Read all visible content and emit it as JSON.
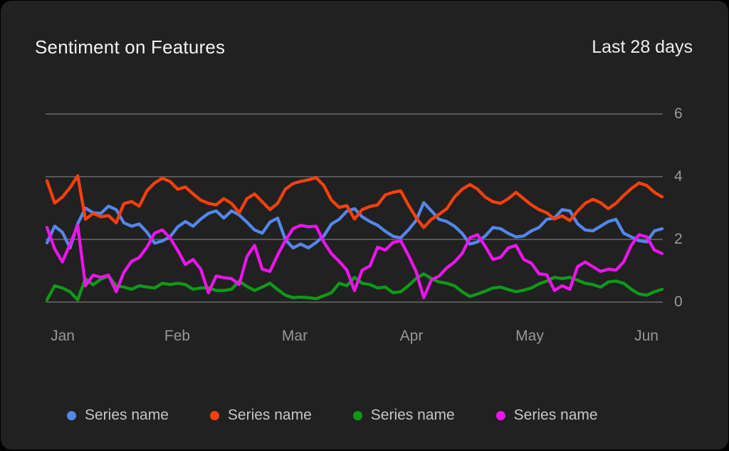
{
  "card": {
    "title": "Sentiment on Features",
    "period": "Last 28 days"
  },
  "chart_data": {
    "type": "line",
    "title": "Sentiment on Features",
    "subtitle": "Last 28 days",
    "grid": true,
    "legend_position": "bottom",
    "ylim": [
      0,
      6
    ],
    "y_ticks": [
      6,
      4,
      2,
      0
    ],
    "y_tick_labels": [
      "6",
      "4",
      "2",
      "0"
    ],
    "x_tick_labels": [
      "Jan",
      "Feb",
      "Mar",
      "Apr",
      "May",
      "Jun"
    ],
    "series": [
      {
        "name": "Series name",
        "color": "#5486ec",
        "values": [
          1.89,
          2.42,
          2.23,
          1.73,
          2.5,
          3.0,
          2.85,
          2.83,
          3.06,
          2.95,
          2.53,
          2.42,
          2.49,
          2.23,
          1.88,
          1.95,
          2.08,
          2.4,
          2.57,
          2.42,
          2.65,
          2.83,
          2.91,
          2.68,
          2.91,
          2.78,
          2.55,
          2.3,
          2.2,
          2.55,
          2.68,
          2.0,
          1.73,
          1.85,
          1.73,
          1.9,
          2.11,
          2.49,
          2.64,
          2.9,
          2.98,
          2.72,
          2.57,
          2.45,
          2.26,
          2.1,
          2.05,
          2.3,
          2.6,
          3.17,
          2.91,
          2.64,
          2.57,
          2.42,
          2.19,
          1.85,
          1.92,
          2.11,
          2.38,
          2.34,
          2.19,
          2.08,
          2.11,
          2.27,
          2.38,
          2.64,
          2.68,
          2.95,
          2.91,
          2.5,
          2.3,
          2.27,
          2.42,
          2.57,
          2.64,
          2.2,
          2.08,
          1.96,
          1.92,
          2.27,
          2.34
        ]
      },
      {
        "name": "Series name",
        "color": "#fb400c",
        "values": [
          3.87,
          3.16,
          3.35,
          3.65,
          4.03,
          2.64,
          2.83,
          2.72,
          2.76,
          2.53,
          3.14,
          3.21,
          3.06,
          3.55,
          3.8,
          3.95,
          3.85,
          3.6,
          3.67,
          3.45,
          3.25,
          3.15,
          3.1,
          3.3,
          3.15,
          2.85,
          3.3,
          3.45,
          3.2,
          2.95,
          3.15,
          3.6,
          3.78,
          3.85,
          3.9,
          3.97,
          3.72,
          3.25,
          3.02,
          3.08,
          2.65,
          2.95,
          3.05,
          3.1,
          3.42,
          3.5,
          3.55,
          3.1,
          2.7,
          2.38,
          2.64,
          2.8,
          2.98,
          3.35,
          3.6,
          3.75,
          3.6,
          3.35,
          3.2,
          3.15,
          3.3,
          3.5,
          3.3,
          3.1,
          2.95,
          2.85,
          2.65,
          2.75,
          2.6,
          2.9,
          3.15,
          3.28,
          3.17,
          2.98,
          3.15,
          3.4,
          3.62,
          3.8,
          3.72,
          3.5,
          3.36
        ]
      },
      {
        "name": "Series name",
        "color": "#0e9a18",
        "values": [
          0.07,
          0.52,
          0.45,
          0.33,
          0.07,
          0.75,
          0.55,
          0.73,
          0.83,
          0.52,
          0.48,
          0.41,
          0.52,
          0.48,
          0.45,
          0.6,
          0.56,
          0.6,
          0.56,
          0.41,
          0.45,
          0.45,
          0.37,
          0.37,
          0.41,
          0.67,
          0.5,
          0.37,
          0.48,
          0.6,
          0.4,
          0.22,
          0.14,
          0.16,
          0.14,
          0.11,
          0.2,
          0.3,
          0.6,
          0.52,
          0.79,
          0.6,
          0.56,
          0.45,
          0.48,
          0.3,
          0.33,
          0.52,
          0.75,
          0.9,
          0.75,
          0.64,
          0.6,
          0.52,
          0.33,
          0.18,
          0.26,
          0.35,
          0.45,
          0.48,
          0.4,
          0.33,
          0.38,
          0.45,
          0.58,
          0.67,
          0.79,
          0.75,
          0.79,
          0.7,
          0.6,
          0.56,
          0.48,
          0.64,
          0.67,
          0.6,
          0.41,
          0.26,
          0.22,
          0.33,
          0.41
        ]
      },
      {
        "name": "Series name",
        "color": "#ee14ee",
        "values": [
          2.38,
          1.7,
          1.28,
          1.85,
          2.45,
          0.52,
          0.86,
          0.79,
          0.86,
          0.33,
          0.95,
          1.3,
          1.42,
          1.75,
          2.2,
          2.3,
          2.05,
          1.65,
          1.2,
          1.36,
          1.05,
          0.3,
          0.83,
          0.78,
          0.75,
          0.56,
          1.45,
          1.81,
          1.05,
          0.98,
          1.5,
          1.96,
          2.34,
          2.45,
          2.4,
          2.42,
          1.92,
          1.54,
          1.3,
          1.02,
          0.37,
          1.02,
          1.15,
          1.75,
          1.66,
          1.9,
          1.96,
          1.5,
          0.98,
          0.14,
          0.71,
          0.83,
          1.09,
          1.28,
          1.55,
          2.05,
          2.15,
          1.78,
          1.36,
          1.43,
          1.73,
          1.81,
          1.36,
          1.24,
          0.9,
          0.87,
          0.37,
          0.52,
          0.41,
          1.13,
          1.28,
          1.13,
          0.98,
          1.05,
          1.02,
          1.28,
          1.81,
          2.15,
          2.08,
          1.66,
          1.55
        ]
      }
    ]
  }
}
